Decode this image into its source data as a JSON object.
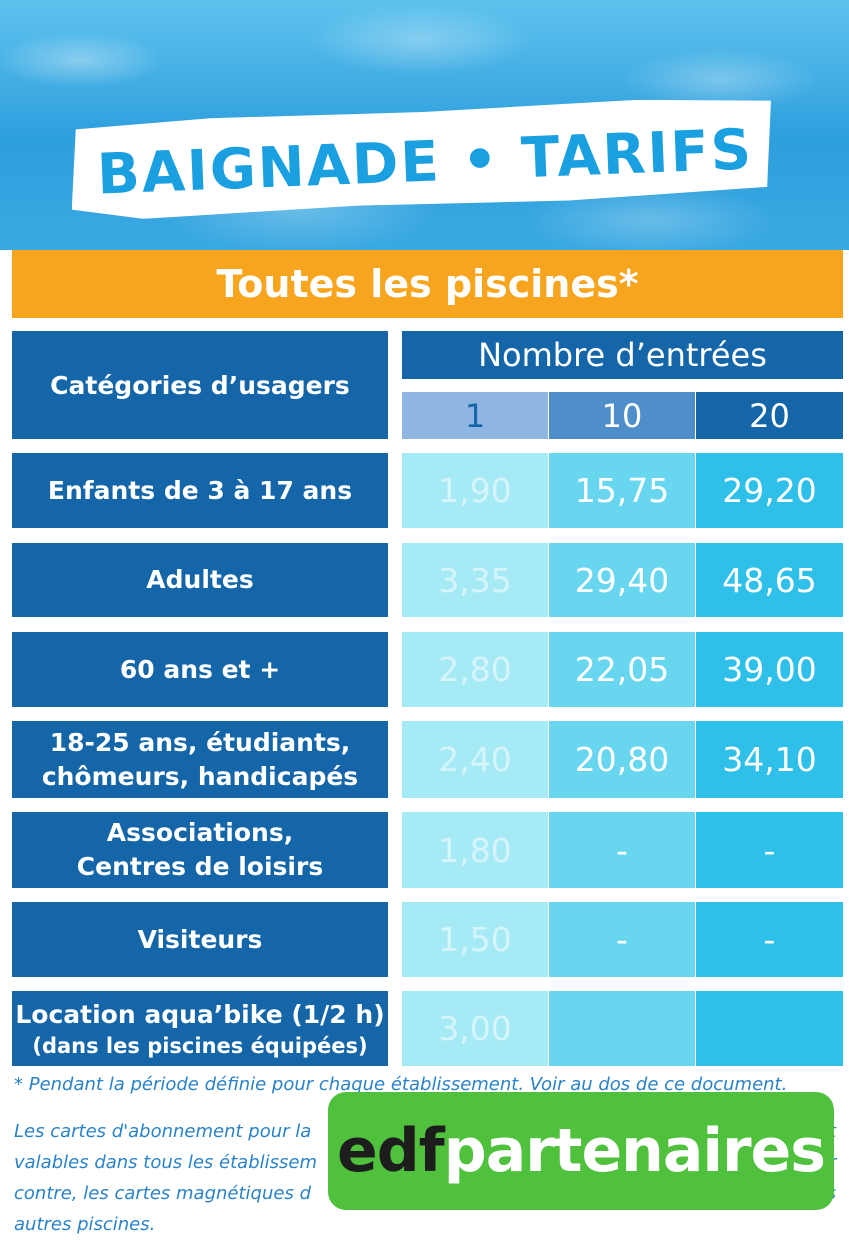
{
  "header": {
    "title": "BAIGNADE • TARIFS",
    "subtitle": "Toutes les piscines*"
  },
  "table": {
    "category_header": "Catégories d’usagers",
    "entries_header": "Nombre d’entrées",
    "columns": [
      "1",
      "10",
      "20"
    ],
    "rows": [
      {
        "label": [
          "Enfants de 3 à 17 ans"
        ],
        "values": [
          "1,90",
          "15,75",
          "29,20"
        ]
      },
      {
        "label": [
          "Adultes"
        ],
        "values": [
          "3,35",
          "29,40",
          "48,65"
        ]
      },
      {
        "label": [
          "60 ans et +"
        ],
        "values": [
          "2,80",
          "22,05",
          "39,00"
        ]
      },
      {
        "label": [
          "18-25 ans, étudiants,",
          "chômeurs, handicapés"
        ],
        "values": [
          "2,40",
          "20,80",
          "34,10"
        ]
      },
      {
        "label": [
          "Associations,",
          "Centres de loisirs"
        ],
        "values": [
          "1,80",
          "-",
          "-"
        ]
      },
      {
        "label": [
          "Visiteurs"
        ],
        "values": [
          "1,50",
          "-",
          "-"
        ]
      },
      {
        "label": [
          "Location aqua’bike (1/2 h)",
          "(dans les piscines équipées)"
        ],
        "values": [
          "3,00",
          "",
          ""
        ]
      }
    ]
  },
  "footnote": "* Pendant la période définie pour chaque établissement. Voir au dos de ce document.",
  "paragraph": {
    "line1": "Les cartes d'abonnement pour la",
    "line1_end": "t",
    "line2": "valables dans tous les établissem",
    "line2_end": "r",
    "line3": "contre, les cartes magnétiques d",
    "line3_end": "s",
    "line4": "autres piscines."
  },
  "badge": {
    "brand": "edf",
    "word": "partenaires",
    "color": "#4fc13d"
  }
}
